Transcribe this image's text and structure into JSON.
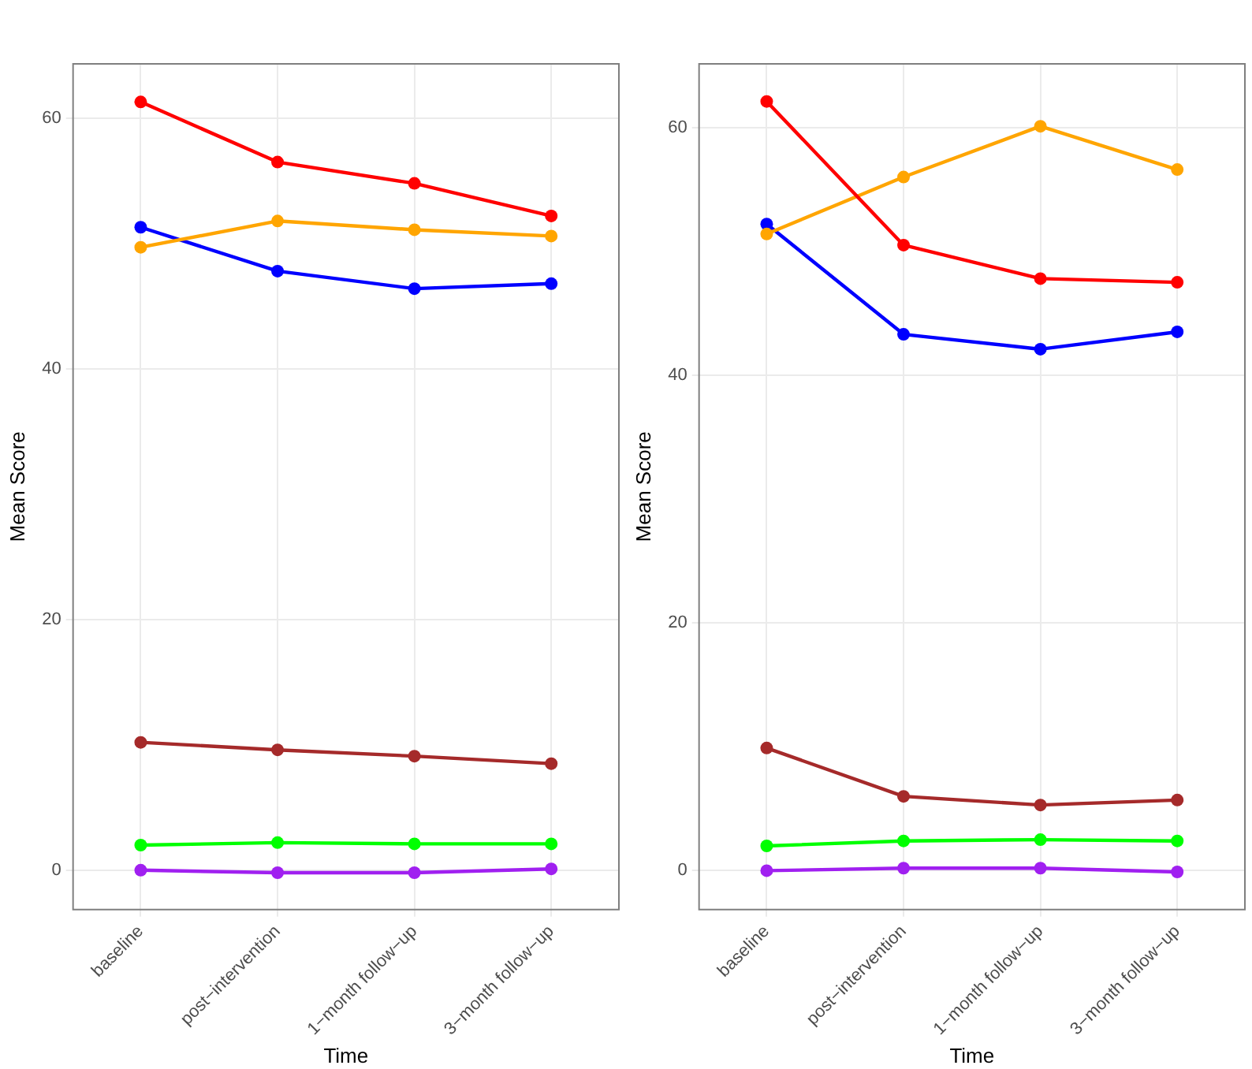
{
  "chart_data": [
    {
      "type": "line",
      "xlabel": "Time",
      "ylabel": "Mean Score",
      "categories": [
        "baseline",
        "post−intervention",
        "1−month follow−up",
        "3−month follow−up"
      ],
      "ylim": [
        -3.2,
        64.4
      ],
      "yticks": [
        0,
        20,
        40,
        60
      ],
      "grid": true,
      "legend": false,
      "marker": "circle",
      "series": [
        {
          "color": "#ff0000",
          "values": [
            61.3,
            56.5,
            54.8,
            52.2
          ]
        },
        {
          "color": "#ffa500",
          "values": [
            49.7,
            51.8,
            51.1,
            50.6
          ]
        },
        {
          "color": "#0000ff",
          "values": [
            51.3,
            47.8,
            46.4,
            46.8
          ]
        },
        {
          "color": "#a52a2a",
          "values": [
            10.2,
            9.6,
            9.1,
            8.5
          ]
        },
        {
          "color": "#00ff00",
          "values": [
            2.0,
            2.2,
            2.1,
            2.1
          ]
        },
        {
          "color": "#a020f0",
          "values": [
            0,
            -0.2,
            -0.2,
            0.1
          ]
        }
      ]
    },
    {
      "type": "line",
      "xlabel": "Time",
      "ylabel": "Mean Score",
      "categories": [
        "baseline",
        "post−intervention",
        "1−month follow−up",
        "3−month follow−up"
      ],
      "ylim": [
        -3.2,
        65.2
      ],
      "yticks": [
        0,
        20,
        40,
        60
      ],
      "grid": true,
      "legend": false,
      "marker": "circle",
      "series": [
        {
          "color": "#ff0000",
          "values": [
            62.1,
            50.5,
            47.8,
            47.5
          ]
        },
        {
          "color": "#ffa500",
          "values": [
            51.4,
            56.0,
            60.1,
            56.6
          ]
        },
        {
          "color": "#0000ff",
          "values": [
            52.2,
            43.3,
            42.1,
            43.5
          ]
        },
        {
          "color": "#a52a2a",
          "values": [
            9.9,
            6.0,
            5.3,
            5.7
          ]
        },
        {
          "color": "#00ff00",
          "values": [
            2.0,
            2.4,
            2.5,
            2.4
          ]
        },
        {
          "color": "#a020f0",
          "values": [
            0,
            0.2,
            0.2,
            -0.1
          ]
        }
      ]
    }
  ]
}
